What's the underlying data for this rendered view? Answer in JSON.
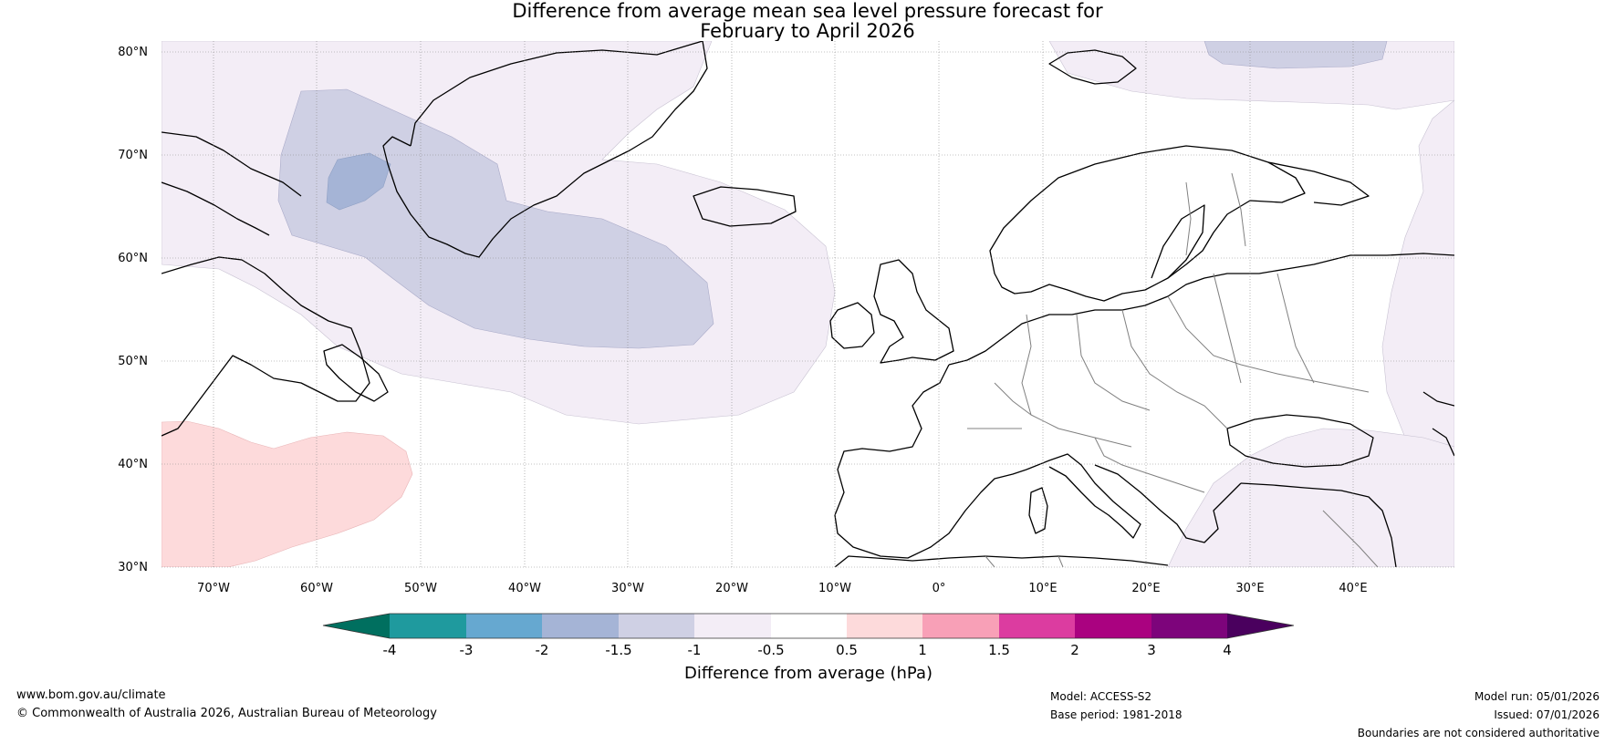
{
  "title": {
    "line1": "Difference from average mean sea level pressure forecast for",
    "line2": "February to April 2026"
  },
  "axes": {
    "lat_labels": [
      "80°N",
      "70°N",
      "60°N",
      "50°N",
      "40°N",
      "30°N"
    ],
    "lon_labels": [
      "70°W",
      "60°W",
      "50°W",
      "40°W",
      "30°W",
      "20°W",
      "10°W",
      "0°",
      "10°E",
      "20°E",
      "30°E",
      "40°E"
    ]
  },
  "colorbar": {
    "label": "Difference from average (hPa)",
    "ticks": [
      "-4",
      "-3",
      "-2",
      "-1.5",
      "-1",
      "-0.5",
      "0.5",
      "1",
      "1.5",
      "2",
      "3",
      "4"
    ],
    "colors": {
      "lt_-4": "#006f5f",
      "n4_n3": "#1f9a9e",
      "n3_n2": "#66a8d0",
      "n2_n15": "#a5b4d6",
      "n15_n1": "#cfd0e4",
      "n1_n05": "#f3edf6",
      "n05_05": "#ffffff",
      "p05_p1": "#fddadb",
      "p1_p15": "#f8a0b7",
      "p15_p2": "#dc3ca0",
      "p2_p3": "#aa0280",
      "p3_p4": "#7d047b",
      "gt_4": "#4a005e"
    }
  },
  "footer": {
    "website": "www.bom.gov.au/climate",
    "copyright": "© Commonwealth of Australia 2026, Australian Bureau of Meteorology",
    "model": "Model: ACCESS-S2",
    "base_period": "Base period: 1981-2018",
    "model_run": "Model run: 05/01/2026",
    "issued": "Issued: 07/01/2026",
    "disclaimer": "Boundaries are not considered authoritative"
  }
}
